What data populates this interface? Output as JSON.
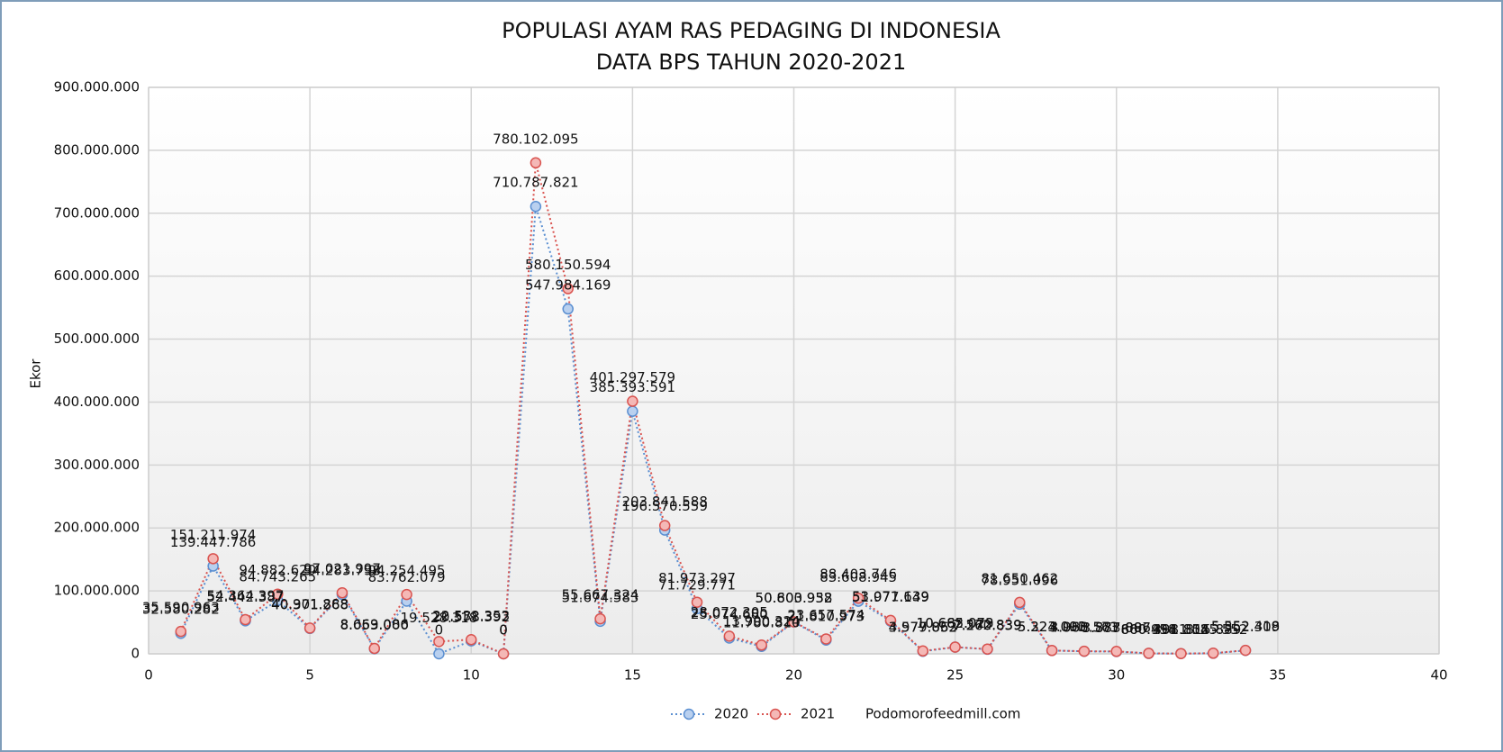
{
  "chart_data": {
    "type": "line",
    "title": "POPULASI AYAM RAS PEDAGING DI INDONESIA",
    "subtitle": "DATA BPS TAHUN 2020-2021",
    "y_label": "Ekor",
    "source": "Podomorofeedmill.com",
    "x": [
      1,
      2,
      3,
      4,
      5,
      6,
      7,
      8,
      9,
      10,
      11,
      12,
      13,
      14,
      15,
      16,
      17,
      18,
      19,
      20,
      21,
      22,
      23,
      24,
      25,
      26,
      27,
      28,
      29,
      30,
      31,
      32,
      33,
      34
    ],
    "series": [
      {
        "name": "2020",
        "color": "#5b8fd1",
        "marker_fill": "#b9d0ef",
        "values": [
          32580282,
          139447786,
          52442387,
          84743265,
          40371268,
          94283798,
          8053000,
          83762079,
          0,
          20578392,
          0,
          710787821,
          547984169,
          51674583,
          385393591,
          196570559,
          71729771,
          25074680,
          11780810,
          50600952,
          21810973,
          83608945,
          51977149,
          3979062,
          10665023,
          7260839,
          78951096,
          5223093,
          3960573,
          3573887,
          660494,
          398812,
          815889,
          5352309
        ],
        "value_labels": [
          "32.580.282",
          "139.447.786",
          "52.442.387",
          "84.743.265",
          "40.371.268",
          "94.283.798",
          "8.053.000",
          "83.762.079",
          "0",
          "20.578.392",
          "0",
          "710.787.821",
          "547.984.169",
          "51.674.583",
          "385.393.591",
          "196.570.559",
          "71.729.771",
          "25.074.680",
          "11.780.810",
          "50.600.952",
          "21.810.973",
          "83.608.945",
          "51.977.149",
          "3.979.062",
          "10.665.023",
          "7.260.839",
          "78.951.096",
          "5.223.093",
          "3.960.573",
          "3.573.887",
          "660.494",
          "398.812",
          "815.889",
          "5.352.309"
        ]
      },
      {
        "name": "2021",
        "color": "#d9534f",
        "marker_fill": "#f4b8b6",
        "values": [
          35590963,
          151211974,
          54364397,
          94882620,
          40901888,
          97021997,
          8669086,
          94254495,
          19528318,
          22532353,
          0,
          780102095,
          580150594,
          55667324,
          401297579,
          203841588,
          81973297,
          28072305,
          13900324,
          50803938,
          23657574,
          88403746,
          53071639,
          4577853,
          10682079,
          7572839,
          81650462,
          5324000,
          4088561,
          3887096,
          860958,
          401858,
          1045552,
          5552418
        ],
        "value_labels": [
          "35.590.963",
          "151.211.974",
          "54.364.397",
          "94.882.620",
          "40.901.888",
          "97.021.997",
          "8.669.086",
          "94.254.495",
          "19.528.318",
          "22.532.353",
          "0",
          "780.102.095",
          "580.150.594",
          "55.667.324",
          "401.297.579",
          "203.841.588",
          "81.973.297",
          "28.072.305",
          "13.900.324",
          "50.803.938",
          "23.657.574",
          "88.403.746",
          "53.071.639",
          "4.577.853",
          "10.682.079",
          "7.572.839",
          "81.650.462",
          "5.324.000",
          "4.088.561",
          "3.887.096",
          "860.958",
          "401.858",
          "1.045.552",
          "5.552.418"
        ]
      }
    ],
    "xlim": [
      0,
      40
    ],
    "xticks": [
      0,
      5,
      10,
      15,
      20,
      25,
      30,
      35,
      40
    ],
    "ylim": [
      0,
      900000000
    ],
    "yticks": [
      {
        "value": 0,
        "label": "0"
      },
      {
        "value": 100000000,
        "label": "100.000.000"
      },
      {
        "value": 200000000,
        "label": "200.000.000"
      },
      {
        "value": 300000000,
        "label": "300.000.000"
      },
      {
        "value": 400000000,
        "label": "400.000.000"
      },
      {
        "value": 500000000,
        "label": "500.000.000"
      },
      {
        "value": 600000000,
        "label": "600.000.000"
      },
      {
        "value": 700000000,
        "label": "700.000.000"
      },
      {
        "value": 800000000,
        "label": "800.000.000"
      },
      {
        "value": 900000000,
        "label": "900.000.000"
      }
    ],
    "grid": true,
    "legend": "bottom"
  }
}
